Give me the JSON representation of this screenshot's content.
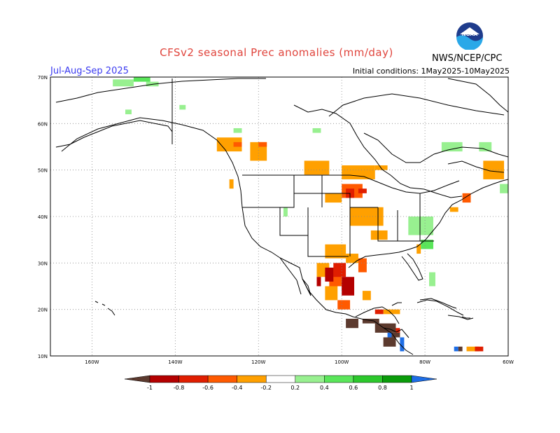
{
  "header": {
    "title": "CFSv2 seasonal Prec anomalies (mm/day)",
    "period": "Jul-Aug-Sep 2025",
    "initial_conditions": "Initial conditions: 1May2025-10May2025",
    "agency": "NWS/NCEP/CPC",
    "logo_text": "NOAA"
  },
  "map": {
    "lat_labels": [
      "70N",
      "60N",
      "50N",
      "40N",
      "30N",
      "20N",
      "10N"
    ],
    "lon_labels": [
      "160W",
      "140W",
      "120W",
      "100W",
      "80W",
      "60W"
    ],
    "lat_values": [
      70,
      60,
      50,
      40,
      30,
      20,
      10
    ],
    "lon_values": [
      -160,
      -140,
      -120,
      -100,
      -80,
      -60
    ],
    "extent": {
      "lon_min": -170,
      "lon_max": -60,
      "lat_min": 10,
      "lat_max": 70
    },
    "grid": "dotted"
  },
  "legend": {
    "ticks": [
      "-1",
      "-0.8",
      "-0.6",
      "-0.4",
      "-0.2",
      "0.2",
      "0.4",
      "0.6",
      "0.8",
      "1"
    ],
    "colors": [
      "#5c3a2e",
      "#b40000",
      "#e01e00",
      "#ff5a00",
      "#ffa000",
      "#ffffff",
      "#98f090",
      "#5ae65a",
      "#2cc82c",
      "#0a9c0a",
      "#1e6ee6"
    ]
  },
  "anomalies": [
    {
      "color": "#98f090",
      "cells": [
        [
          -155,
          68,
          5,
          1.5
        ],
        [
          -147,
          68,
          3,
          1
        ],
        [
          -152,
          62,
          1.5,
          1
        ],
        [
          -139,
          63,
          1.5,
          1
        ],
        [
          -126,
          58,
          2,
          1
        ],
        [
          -107,
          58,
          2,
          1
        ],
        [
          -76,
          54,
          5,
          2
        ],
        [
          -67,
          54,
          3,
          2
        ],
        [
          -84,
          36,
          6,
          4
        ],
        [
          -114,
          40,
          1,
          2
        ],
        [
          -62,
          45,
          2,
          2
        ],
        [
          -79,
          25,
          1.5,
          3
        ]
      ]
    },
    {
      "color": "#5ae65a",
      "cells": [
        [
          -150,
          69,
          4,
          1
        ],
        [
          -81,
          33,
          3,
          2
        ]
      ]
    },
    {
      "color": "#ffa000",
      "cells": [
        [
          -130,
          54,
          6,
          3
        ],
        [
          -122,
          52,
          4,
          4
        ],
        [
          -109,
          49,
          6,
          3
        ],
        [
          -100,
          48,
          8,
          3
        ],
        [
          -92,
          50,
          3,
          1
        ],
        [
          -66,
          48,
          5,
          4
        ],
        [
          -98,
          38,
          8,
          4
        ],
        [
          -93,
          35,
          4,
          2
        ],
        [
          -104,
          31,
          5,
          3
        ],
        [
          -99,
          30,
          3,
          2
        ],
        [
          -106,
          27,
          3,
          3
        ],
        [
          -104,
          22,
          3,
          3
        ],
        [
          -95,
          22,
          2,
          2
        ],
        [
          -90,
          19,
          4,
          1
        ],
        [
          -74,
          41,
          2,
          1
        ],
        [
          -127,
          46,
          1,
          2
        ],
        [
          -104,
          43,
          4,
          2
        ],
        [
          -82,
          32,
          1,
          2
        ],
        [
          -70,
          11,
          3,
          1
        ]
      ]
    },
    {
      "color": "#ff5a00",
      "cells": [
        [
          -126,
          55,
          2,
          1
        ],
        [
          -100,
          44,
          5,
          3
        ],
        [
          -96,
          28,
          2,
          3
        ],
        [
          -103,
          25,
          3,
          4
        ],
        [
          -101,
          20,
          3,
          2
        ],
        [
          -71,
          43,
          2,
          2
        ],
        [
          -120,
          55,
          2,
          1
        ]
      ]
    },
    {
      "color": "#e01e00",
      "cells": [
        [
          -99,
          44,
          2,
          2
        ],
        [
          -96,
          45,
          2,
          1
        ],
        [
          -102,
          27,
          3,
          3
        ],
        [
          -100,
          24,
          2,
          2
        ],
        [
          -92,
          19,
          2,
          1
        ],
        [
          -87,
          15,
          1,
          1
        ],
        [
          -68,
          11,
          2,
          1
        ]
      ]
    },
    {
      "color": "#b40000",
      "cells": [
        [
          -100,
          23,
          3,
          4
        ],
        [
          -104,
          26,
          2,
          3
        ],
        [
          -106,
          25,
          1,
          2
        ]
      ]
    },
    {
      "color": "#5c3a2e",
      "cells": [
        [
          -99,
          16,
          3,
          2
        ],
        [
          -95,
          17,
          4,
          1
        ],
        [
          -92,
          15,
          5,
          2
        ],
        [
          -88,
          14,
          2,
          1
        ],
        [
          -90,
          12,
          3,
          2
        ],
        [
          -72,
          11,
          1,
          1
        ]
      ]
    },
    {
      "color": "#1e6ee6",
      "cells": [
        [
          -86,
          11,
          1,
          3
        ],
        [
          -89,
          14,
          1,
          1
        ],
        [
          -73,
          11,
          1,
          1
        ]
      ]
    }
  ]
}
